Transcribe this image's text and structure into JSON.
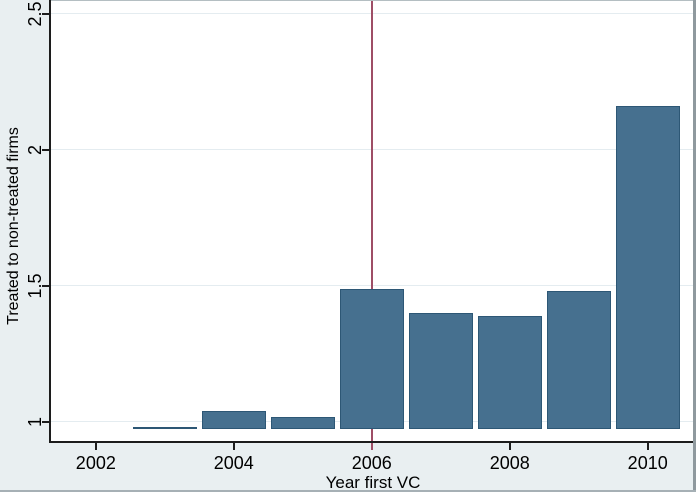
{
  "chart_data": {
    "type": "bar",
    "title": "",
    "xlabel": "Year first VC",
    "ylabel": "Treated to non-treated firms",
    "x": [
      2003,
      2004,
      2005,
      2006,
      2007,
      2008,
      2009,
      2010
    ],
    "values": [
      0.98,
      1.04,
      1.02,
      1.49,
      1.4,
      1.39,
      1.48,
      2.16
    ],
    "bar_base": 0.974,
    "x_ticks": [
      2002,
      2004,
      2006,
      2008,
      2010
    ],
    "y_ticks": [
      1,
      1.5,
      2,
      2.5
    ],
    "xlim": [
      2001.35,
      2010.7
    ],
    "ylim": [
      0.93,
      2.55
    ],
    "grid": true,
    "legend": "none",
    "vline_x": 2006,
    "colors": {
      "bar_fill": "#46708f",
      "bar_outline": "#2d5775",
      "vline": "#9e4e66",
      "plot_bg": "#ffffff",
      "margin_bg": "#e9eff1",
      "gridline": "#e4ecf0",
      "axis": "#1c1c1c",
      "text": "#000000",
      "border_top": "#b4bec2",
      "border_right": "#8f999e",
      "border_bottom": "#a6b0b5"
    }
  }
}
